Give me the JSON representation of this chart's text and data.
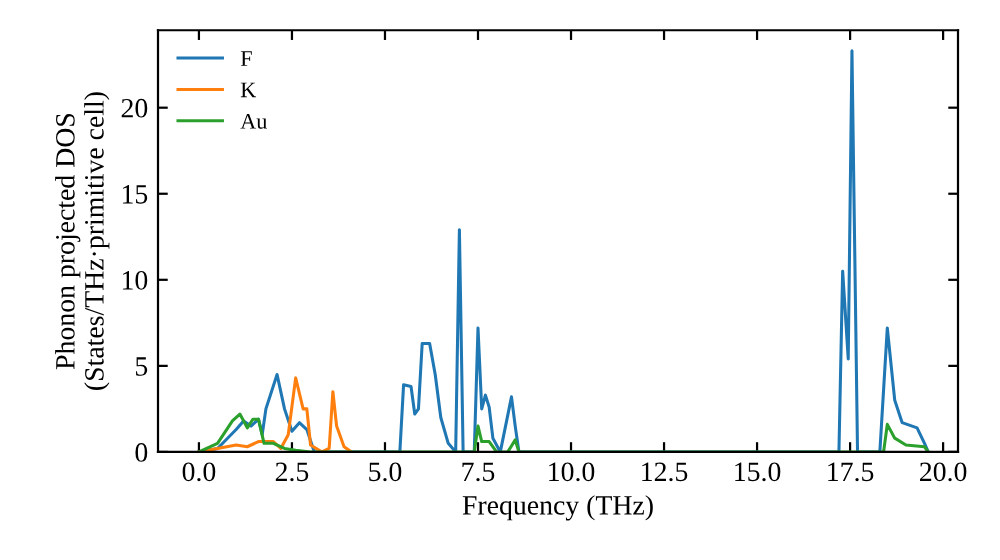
{
  "chart_data": {
    "type": "line",
    "xlabel": "Frequency (THz)",
    "ylabel": "Phonon projected DOS\n(States/THz·primitive cell)",
    "xlim": [
      -1.1,
      20.4
    ],
    "ylim": [
      0,
      24.5
    ],
    "xticks": [
      {
        "value": 0,
        "label": "0.0"
      },
      {
        "value": 2.5,
        "label": "2.5"
      },
      {
        "value": 5,
        "label": "5.0"
      },
      {
        "value": 7.5,
        "label": "7.5"
      },
      {
        "value": 10,
        "label": "10.0"
      },
      {
        "value": 12.5,
        "label": "12.5"
      },
      {
        "value": 15,
        "label": "15.0"
      },
      {
        "value": 17.5,
        "label": "17.5"
      },
      {
        "value": 20,
        "label": "20.0"
      }
    ],
    "yticks": [
      0,
      5,
      10,
      15,
      20
    ],
    "legend": "top left",
    "grid": false,
    "marker": "none",
    "line_style": "solid",
    "series": [
      {
        "name": "F",
        "color": "#1f77b4",
        "x": [
          0,
          0.5,
          1.0,
          1.2,
          1.4,
          1.6,
          1.7,
          1.8,
          2.1,
          2.3,
          2.5,
          2.7,
          2.9,
          3.1,
          5.4,
          5.5,
          5.7,
          5.8,
          5.9,
          6.0,
          6.2,
          6.35,
          6.5,
          6.7,
          6.9,
          7.0,
          7.1,
          7.4,
          7.5,
          7.6,
          7.7,
          7.8,
          7.9,
          8.1,
          8.4,
          8.5,
          8.6,
          17.2,
          17.3,
          17.45,
          17.55,
          17.7,
          18.3,
          18.5,
          18.7,
          18.9,
          19.3,
          19.5,
          19.6
        ],
        "values": [
          0,
          0.2,
          1.3,
          1.8,
          1.5,
          1.9,
          1.0,
          2.5,
          4.5,
          2.5,
          1.2,
          1.7,
          1.3,
          0,
          0,
          3.9,
          3.8,
          2.2,
          2.5,
          6.3,
          6.3,
          4.5,
          2.0,
          0.5,
          0,
          12.9,
          0,
          0,
          7.2,
          2.5,
          3.3,
          2.6,
          0.8,
          0,
          3.2,
          1.5,
          0,
          0,
          10.5,
          5.4,
          23.3,
          0,
          0,
          7.2,
          3.0,
          1.7,
          1.4,
          0.5,
          0
        ]
      },
      {
        "name": "K",
        "color": "#ff7f0e",
        "x": [
          0,
          0.5,
          1.0,
          1.3,
          1.6,
          2.0,
          2.2,
          2.4,
          2.6,
          2.8,
          2.9,
          3.0,
          3.3,
          3.5,
          3.6,
          3.7,
          3.9,
          4.1
        ],
        "values": [
          0,
          0.2,
          0.4,
          0.3,
          0.6,
          0.6,
          0.2,
          1.0,
          4.3,
          2.5,
          2.5,
          0.4,
          0,
          0.2,
          3.5,
          1.5,
          0.3,
          0
        ]
      },
      {
        "name": "Au",
        "color": "#2ca02c",
        "x": [
          0,
          0.5,
          0.9,
          1.1,
          1.3,
          1.45,
          1.6,
          1.75,
          2.0,
          2.3,
          2.6,
          3.0,
          7.4,
          7.5,
          7.6,
          7.8,
          8.0,
          8.3,
          8.5,
          8.6,
          18.4,
          18.5,
          18.7,
          19.0,
          19.5,
          19.6
        ],
        "values": [
          0,
          0.5,
          1.8,
          2.2,
          1.4,
          1.9,
          1.9,
          0.5,
          0.5,
          0.2,
          0.1,
          0,
          0,
          1.5,
          0.6,
          0.6,
          0,
          0,
          0.7,
          0,
          0,
          1.6,
          0.8,
          0.4,
          0.3,
          0
        ]
      }
    ]
  }
}
